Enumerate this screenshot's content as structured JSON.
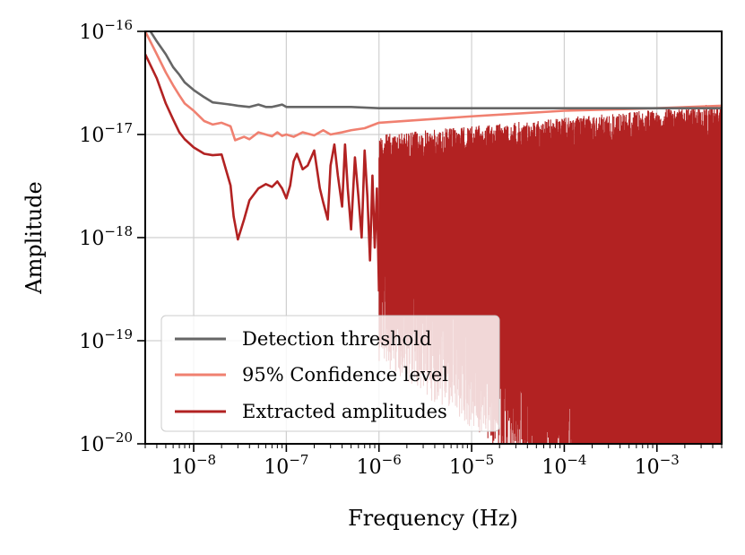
{
  "chart_data": {
    "type": "line",
    "xlabel": "Frequency (Hz)",
    "ylabel": "Amplitude",
    "x_scale": "log",
    "y_scale": "log",
    "xlim": [
      3e-09,
      0.005
    ],
    "ylim": [
      1e-20,
      1e-16
    ],
    "grid": true,
    "legend_position": "bottom-left",
    "x_ticks": [
      {
        "base": "10",
        "exp": "−8",
        "value": 1e-08
      },
      {
        "base": "10",
        "exp": "−7",
        "value": 1e-07
      },
      {
        "base": "10",
        "exp": "−6",
        "value": 1e-06
      },
      {
        "base": "10",
        "exp": "−5",
        "value": 1e-05
      },
      {
        "base": "10",
        "exp": "−4",
        "value": 0.0001
      },
      {
        "base": "10",
        "exp": "−3",
        "value": 0.001
      }
    ],
    "y_ticks": [
      {
        "base": "10",
        "exp": "−16",
        "value": 1e-16
      },
      {
        "base": "10",
        "exp": "−17",
        "value": 1e-17
      },
      {
        "base": "10",
        "exp": "−18",
        "value": 1e-18
      },
      {
        "base": "10",
        "exp": "−19",
        "value": 1e-19
      },
      {
        "base": "10",
        "exp": "−20",
        "value": 1e-20
      }
    ],
    "series": [
      {
        "name": "Detection threshold",
        "color": "#666666",
        "x": [
          3e-09,
          4e-09,
          5e-09,
          6e-09,
          7e-09,
          8e-09,
          1e-08,
          1.3e-08,
          1.6e-08,
          2e-08,
          2.5e-08,
          3e-08,
          4e-08,
          5e-08,
          6e-08,
          7e-08,
          8e-08,
          9e-08,
          1e-07,
          1.5e-07,
          2e-07,
          3e-07,
          5e-07,
          1e-06,
          1e-05,
          0.0001,
          0.001,
          0.005
        ],
        "y": [
          1.2e-16,
          8e-17,
          6e-17,
          4.5e-17,
          3.8e-17,
          3.2e-17,
          2.7e-17,
          2.3e-17,
          2.05e-17,
          2e-17,
          1.95e-17,
          1.9e-17,
          1.85e-17,
          1.95e-17,
          1.85e-17,
          1.85e-17,
          1.9e-17,
          1.95e-17,
          1.85e-17,
          1.85e-17,
          1.85e-17,
          1.85e-17,
          1.85e-17,
          1.8e-17,
          1.8e-17,
          1.8e-17,
          1.8e-17,
          1.8e-17
        ]
      },
      {
        "name": "95% Confidence level",
        "color": "#f08070",
        "x": [
          3e-09,
          4e-09,
          5e-09,
          6e-09,
          7e-09,
          8e-09,
          1e-08,
          1.3e-08,
          1.6e-08,
          2e-08,
          2.5e-08,
          2.8e-08,
          3.5e-08,
          4e-08,
          5e-08,
          6e-08,
          7e-08,
          8e-08,
          9e-08,
          1e-07,
          1.2e-07,
          1.5e-07,
          2e-07,
          2.5e-07,
          3e-07,
          4e-07,
          5e-07,
          7e-07,
          1e-06,
          1e-05,
          0.0001,
          0.001,
          0.005
        ],
        "y": [
          1e-16,
          6e-17,
          4e-17,
          3e-17,
          2.4e-17,
          2e-17,
          1.7e-17,
          1.35e-17,
          1.25e-17,
          1.3e-17,
          1.2e-17,
          8.8e-18,
          9.5e-18,
          9e-18,
          1.05e-17,
          1e-17,
          9.6e-18,
          1.05e-17,
          9.7e-18,
          1e-17,
          9.5e-18,
          1.05e-17,
          9.8e-18,
          1.1e-17,
          1e-17,
          1.05e-17,
          1.1e-17,
          1.15e-17,
          1.3e-17,
          1.5e-17,
          1.7e-17,
          1.8e-17,
          1.9e-17
        ]
      },
      {
        "name": "Extracted amplitudes",
        "color": "#b22222",
        "x": [
          3e-09,
          4e-09,
          5e-09,
          6e-09,
          7e-09,
          8e-09,
          1e-08,
          1.3e-08,
          1.6e-08,
          2e-08,
          2.5e-08,
          2.7e-08,
          3e-08,
          3.5e-08,
          4e-08,
          5e-08,
          6e-08,
          7e-08,
          8e-08,
          9e-08,
          1e-07,
          1.1e-07,
          1.2e-07,
          1.3e-07,
          1.5e-07,
          1.7e-07,
          2e-07,
          2.3e-07,
          2.5e-07,
          2.8e-07,
          3e-07,
          3.3e-07,
          3.6e-07,
          4e-07,
          4.3e-07,
          4.6e-07,
          5e-07,
          5.5e-07,
          6e-07,
          6.5e-07,
          7e-07,
          7.5e-07,
          8e-07,
          8.5e-07,
          9e-07,
          9.5e-07,
          1e-06
        ],
        "y": [
          6e-17,
          3.5e-17,
          2e-17,
          1.4e-17,
          1.05e-17,
          9e-18,
          7.5e-18,
          6.5e-18,
          6.3e-18,
          6.4e-18,
          3.2e-18,
          1.6e-18,
          9.6e-19,
          1.5e-18,
          2.3e-18,
          3e-18,
          3.3e-18,
          3.1e-18,
          3.5e-18,
          3e-18,
          2.4e-18,
          3.2e-18,
          5.5e-18,
          6.5e-18,
          4.6e-18,
          5e-18,
          7e-18,
          3e-18,
          2.2e-18,
          1.5e-18,
          5e-18,
          8e-18,
          4e-18,
          2e-18,
          8e-18,
          3e-18,
          1.2e-18,
          6e-18,
          2.5e-18,
          1e-18,
          7e-18,
          2.5e-18,
          6e-19,
          4e-18,
          8e-19,
          3e-18,
          3e-19
        ]
      }
    ],
    "dense_band": {
      "series": "Extracted amplitudes",
      "x_range": [
        1e-06,
        0.005
      ],
      "y_top_range": [
        1e-17,
        2e-17
      ],
      "y_floor": 1e-20
    }
  }
}
